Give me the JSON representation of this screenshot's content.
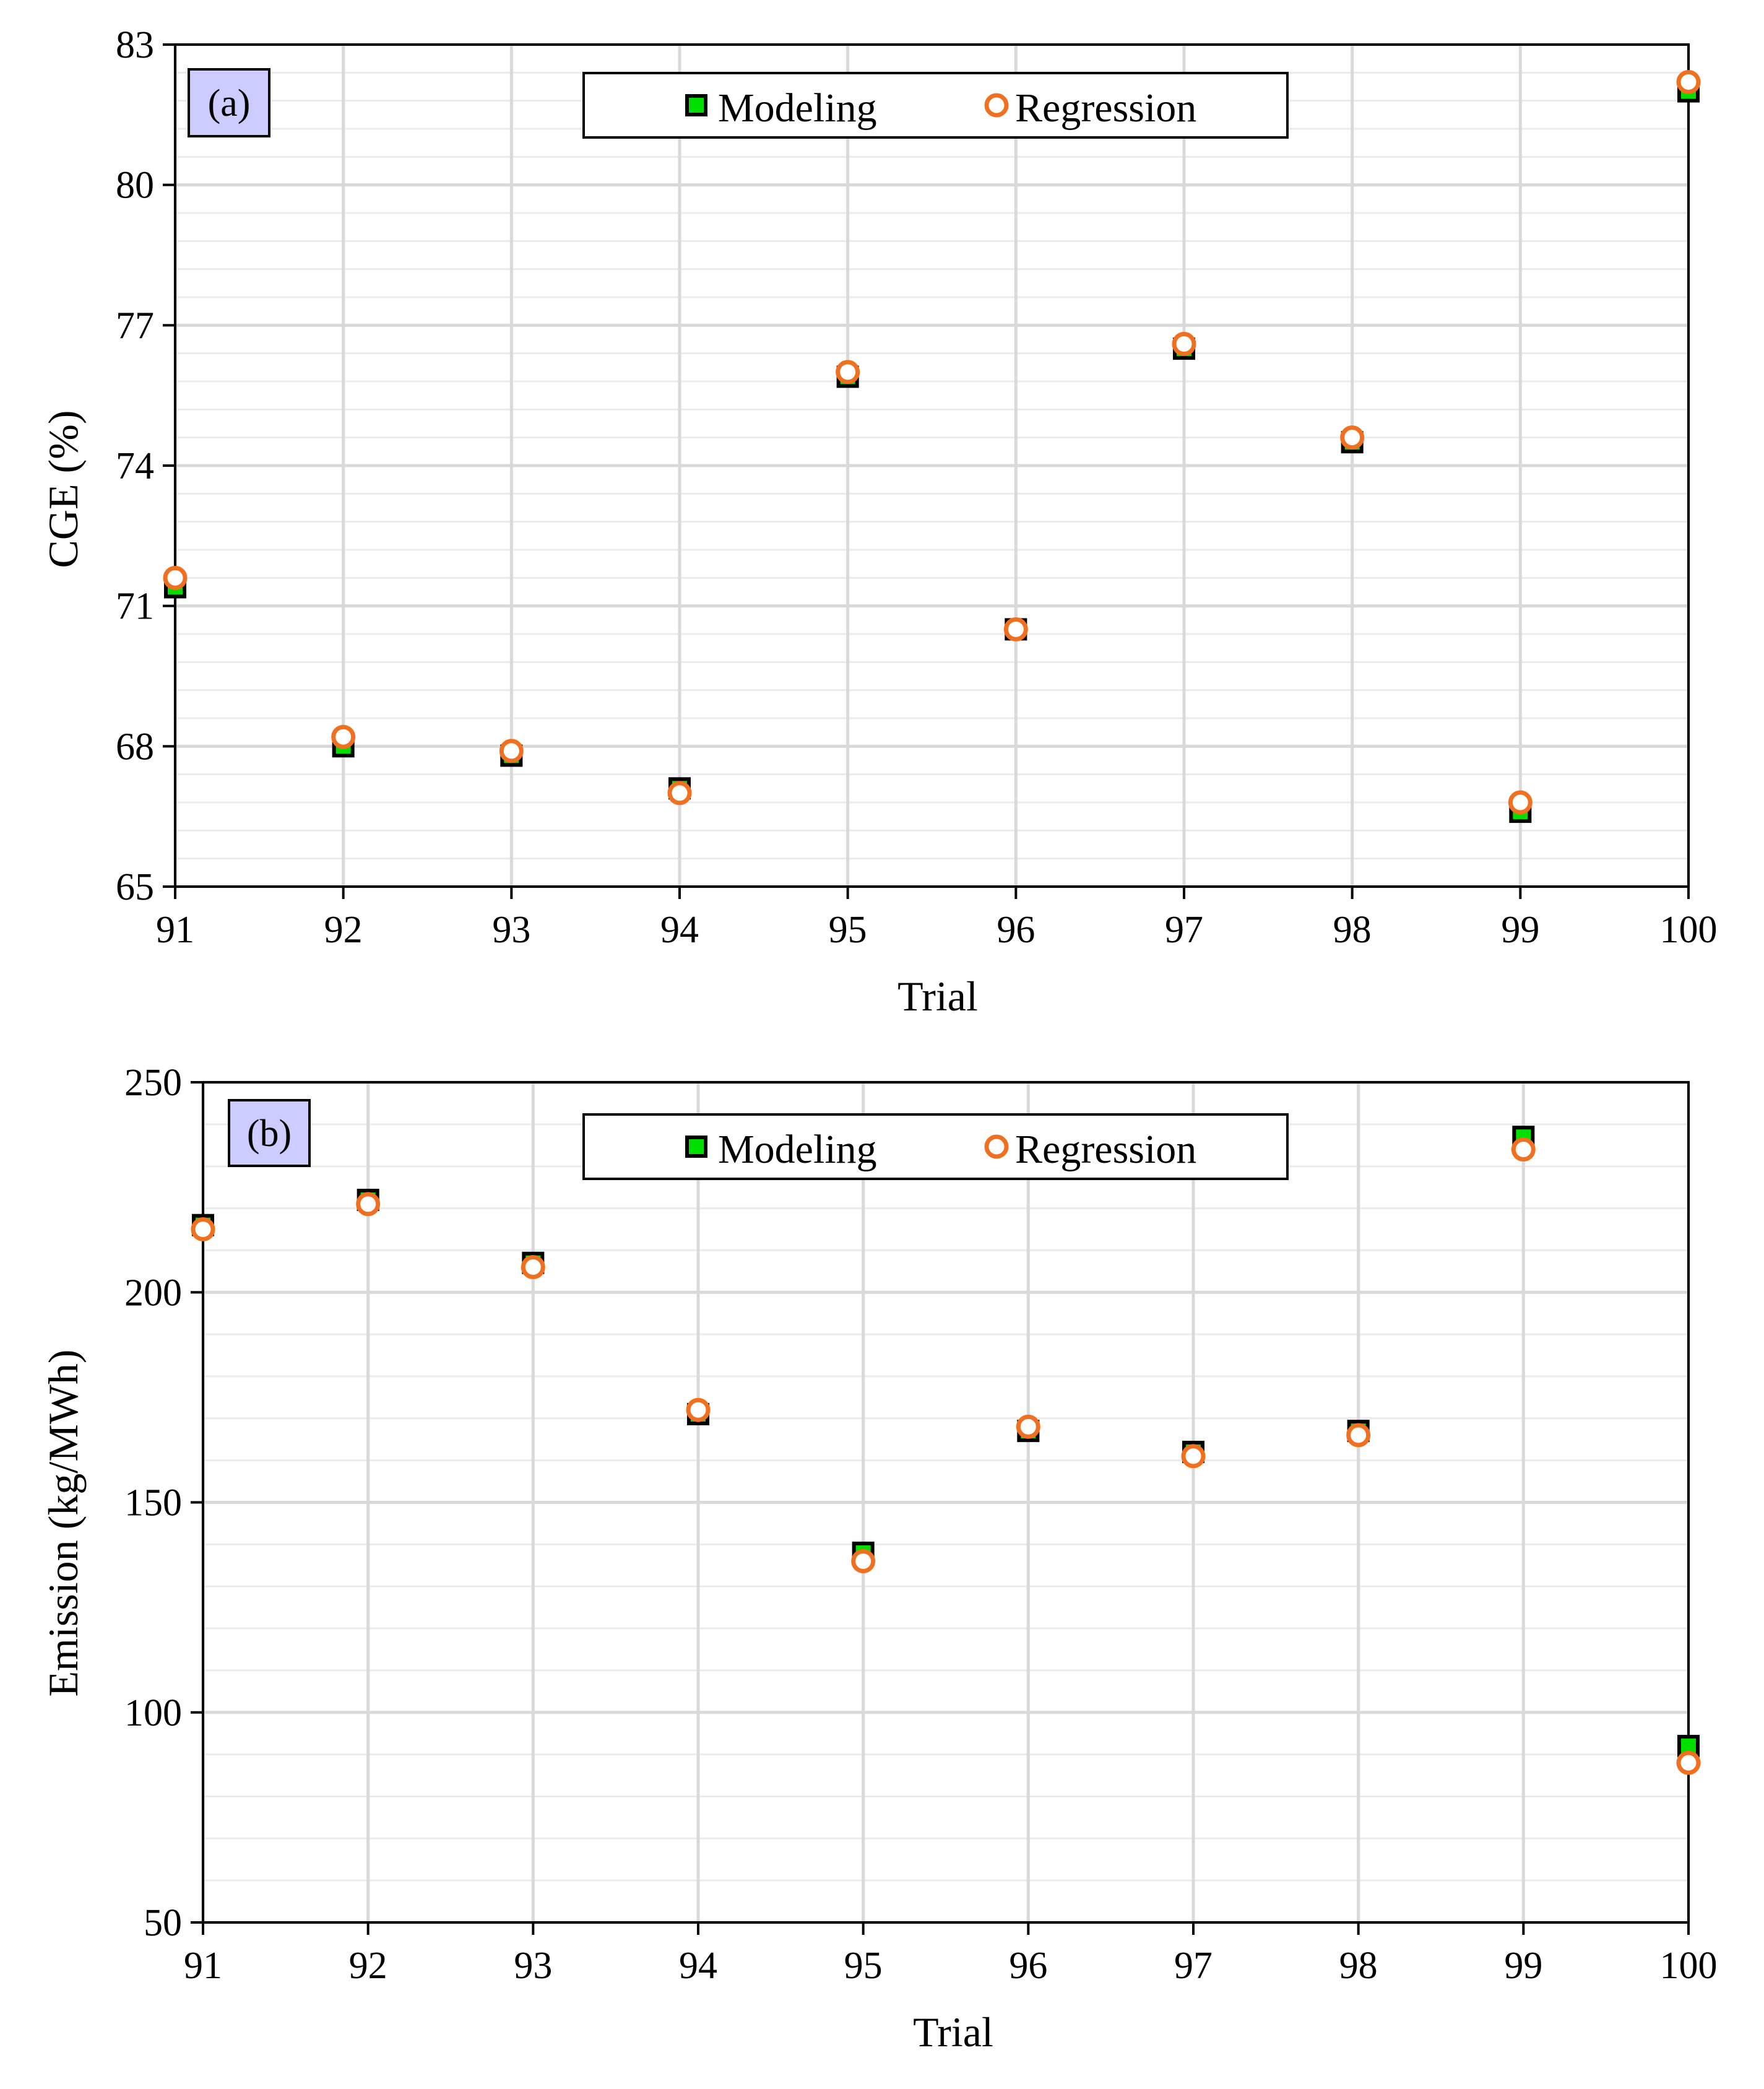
{
  "chart_data": [
    {
      "type": "scatter",
      "panel_label": "(a)",
      "xlabel": "Trial",
      "ylabel": "CGE  (%)",
      "x": [
        91,
        92,
        93,
        94,
        95,
        96,
        97,
        98,
        99,
        100
      ],
      "xlim": [
        91,
        100
      ],
      "ylim": [
        65,
        83
      ],
      "yticks": [
        65,
        68,
        71,
        74,
        77,
        80,
        83
      ],
      "grid": true,
      "legend_position": "top-center",
      "series": [
        {
          "name": "Modeling",
          "marker": "square",
          "values": [
            71.4,
            68.0,
            67.8,
            67.1,
            75.9,
            70.5,
            76.5,
            74.5,
            66.6,
            82.0
          ]
        },
        {
          "name": "Regression",
          "marker": "circle",
          "values": [
            71.6,
            68.2,
            67.9,
            67.0,
            76.0,
            70.5,
            76.6,
            74.6,
            66.8,
            82.2
          ]
        }
      ]
    },
    {
      "type": "scatter",
      "panel_label": "(b)",
      "xlabel": "Trial",
      "ylabel": "Emission  (kg/MWh)",
      "x": [
        91,
        92,
        93,
        94,
        95,
        96,
        97,
        98,
        99,
        100
      ],
      "xlim": [
        91,
        100
      ],
      "ylim": [
        50,
        250
      ],
      "yticks": [
        50,
        100,
        150,
        200,
        250
      ],
      "grid": true,
      "legend_position": "top-center",
      "series": [
        {
          "name": "Modeling",
          "marker": "square",
          "values": [
            216,
            222,
            207,
            171,
            138,
            167,
            162,
            167,
            237,
            92
          ]
        },
        {
          "name": "Regression",
          "marker": "circle",
          "values": [
            215,
            221,
            206,
            172,
            136,
            168,
            161,
            166,
            234,
            88
          ]
        }
      ]
    }
  ],
  "style": {
    "modeling_fill": "#00E000",
    "modeling_edge": "#000000",
    "regression_edge": "#F07020",
    "regression_fill": "#FFFFFF",
    "panel_label_bg": "#CCCCFF",
    "grid_major": "#D9D9D9",
    "grid_minor": "#EBEBEB"
  }
}
